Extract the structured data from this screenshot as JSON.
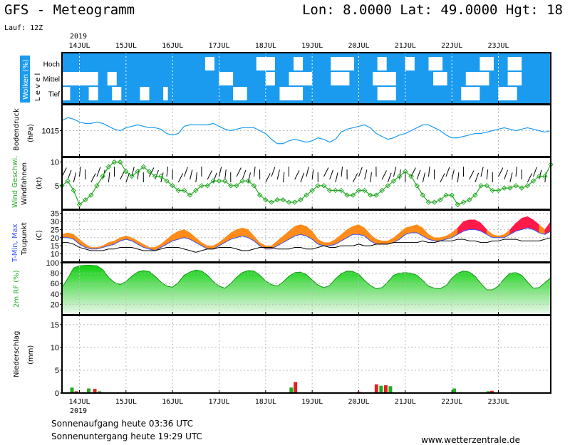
{
  "header": {
    "title": "GFS - Meteogramm",
    "coords": "Lon: 8.0000 Lat: 49.0000 Hgt: 18",
    "run": "Lauf: 12Z",
    "year": "2019"
  },
  "footer": {
    "sunrise": "Sonnenaufgang heute 03:36 UTC",
    "sunset": "Sonnenuntergang heute 19:29 UTC",
    "site": "www.wetterzentrale.de"
  },
  "colors": {
    "cloud_bg": "#1a9bf0",
    "pressure": "#1a9bf0",
    "wind_speed": "#22aa22",
    "humidity_top": "#10d010",
    "humidity_bottom": "#e9f6e9",
    "tmax_warm": "#ff8c1a",
    "tmax_hot": "#ff1a4a",
    "tmin": "#3050ff",
    "dewpoint": "#000000",
    "precip_green": "#22aa22",
    "precip_red": "#dd2222"
  },
  "chart_data": [
    {
      "type": "heatmap",
      "panel": "clouds",
      "ylabel": "Wolken (%)",
      "ylabel2": "L e v e l",
      "levels": [
        "Hoch",
        "Mittel",
        "Tief"
      ],
      "days": [
        "14JUL",
        "15JUL",
        "16JUL",
        "17JUL",
        "18JUL",
        "19JUL",
        "20JUL",
        "21JUL",
        "22JUL",
        "23JUL"
      ],
      "clear_spans": {
        "Hoch": [
          [
            16.7,
            16.9
          ],
          [
            17.8,
            18.2
          ],
          [
            18.6,
            18.8
          ],
          [
            19.4,
            19.9
          ],
          [
            20.4,
            20.6
          ],
          [
            21.0,
            21.2
          ],
          [
            21.5,
            21.8
          ],
          [
            22.6,
            22.9
          ],
          [
            23.2,
            23.5
          ]
        ],
        "Mittel": [
          [
            13.6,
            14.4
          ],
          [
            14.6,
            14.8
          ],
          [
            17.0,
            17.3
          ],
          [
            18.0,
            18.2
          ],
          [
            18.5,
            19.0
          ],
          [
            19.4,
            19.8
          ],
          [
            20.3,
            20.8
          ],
          [
            21.6,
            21.9
          ],
          [
            22.3,
            22.8
          ],
          [
            23.2,
            23.5
          ]
        ],
        "Tief": [
          [
            13.6,
            13.8
          ],
          [
            14.2,
            14.4
          ],
          [
            14.7,
            14.9
          ],
          [
            15.3,
            15.5
          ],
          [
            15.8,
            15.9
          ],
          [
            17.3,
            17.6
          ],
          [
            18.3,
            18.8
          ],
          [
            20.4,
            20.8
          ],
          [
            22.2,
            22.6
          ],
          [
            23.0,
            23.4
          ]
        ]
      }
    },
    {
      "type": "line",
      "panel": "pressure",
      "ylabel": "Bodendruck",
      "unit": "(hPa)",
      "yticks": [
        1015
      ],
      "ylim": [
        1006,
        1024
      ],
      "x_start_day": 13.625,
      "step_days": 0.125,
      "values": [
        1018.5,
        1019.5,
        1019,
        1018,
        1017.5,
        1017.5,
        1018,
        1017.5,
        1016.5,
        1015.5,
        1015,
        1016,
        1016.5,
        1017,
        1016.5,
        1016,
        1016,
        1015.5,
        1014,
        1013.5,
        1014,
        1016.5,
        1017,
        1017,
        1017,
        1017,
        1017.5,
        1016.5,
        1015.5,
        1015,
        1015.5,
        1016,
        1016,
        1016,
        1015,
        1014,
        1012,
        1010.5,
        1010.5,
        1011.5,
        1012,
        1011.5,
        1011,
        1011.5,
        1012.5,
        1012,
        1011,
        1012,
        1014.5,
        1015.5,
        1016,
        1016.5,
        1017,
        1016,
        1014,
        1013,
        1012,
        1012.5,
        1013.5,
        1014,
        1015,
        1016,
        1017,
        1017,
        1016,
        1015,
        1013.5,
        1012.5,
        1012.5,
        1013,
        1013.5,
        1014,
        1014,
        1014.5,
        1015,
        1015.5,
        1016,
        1015.5,
        1015,
        1015.5,
        1016,
        1015.5,
        1015,
        1014.5,
        1015
      ]
    },
    {
      "type": "line",
      "panel": "wind",
      "ylabel": "Wind Geschwi.",
      "ylabel2": "Windfahnen",
      "unit": "(kt)",
      "yticks": [
        5,
        10
      ],
      "ylim": [
        0,
        11
      ],
      "x_start_day": 13.625,
      "step_days": 0.125,
      "values": [
        5,
        6,
        4,
        1,
        2,
        3,
        5,
        7,
        9,
        10,
        10,
        8,
        7,
        8,
        9,
        8,
        7,
        7,
        6,
        5,
        4,
        4,
        3,
        4,
        5,
        5,
        6,
        6,
        6,
        5,
        5,
        6,
        6,
        5,
        3,
        2,
        1.5,
        2,
        2,
        1.5,
        1.5,
        2,
        3,
        4,
        5,
        5,
        4,
        4,
        4,
        3,
        3,
        4,
        4,
        3,
        3,
        4,
        5,
        6,
        7,
        8,
        7,
        5,
        3,
        1.5,
        1.5,
        2,
        3,
        3,
        1,
        1.5,
        2,
        3,
        5,
        5,
        4,
        4,
        4.5,
        4.5,
        5,
        4.5,
        5,
        6,
        7,
        7,
        9.5
      ]
    },
    {
      "type": "area",
      "panel": "temperature",
      "ylabel": "T-Min, Max",
      "ylabel2": "Taupunkt",
      "unit": "(C)",
      "yticks": [
        10,
        15,
        20,
        25,
        30,
        35
      ],
      "ylim": [
        5,
        37
      ],
      "x_start_day": 13.625,
      "step_days": 0.125,
      "tmax": [
        22,
        23,
        22,
        19,
        16,
        14,
        14,
        15,
        17,
        18,
        20,
        21,
        20,
        18,
        16,
        14,
        14,
        16,
        19,
        22,
        24,
        25,
        23,
        20,
        17,
        15,
        15,
        17,
        20,
        23,
        25,
        26,
        25,
        21,
        17,
        15,
        15,
        18,
        21,
        24,
        27,
        28,
        27,
        24,
        19,
        17,
        17,
        19,
        22,
        25,
        27,
        28,
        26,
        22,
        19,
        18,
        18,
        20,
        23,
        26,
        27,
        28,
        26,
        22,
        20,
        20,
        21,
        23,
        26,
        30,
        31,
        31,
        29,
        25,
        22,
        21,
        22,
        25,
        29,
        32,
        33,
        31,
        28,
        25,
        30
      ],
      "tmin": [
        20,
        20,
        19,
        16,
        14,
        13,
        13,
        14,
        15,
        16,
        18,
        19,
        18,
        16,
        14,
        13,
        12,
        14,
        16,
        18,
        19,
        20,
        19,
        17,
        15,
        13,
        13,
        15,
        17,
        19,
        20,
        21,
        20,
        18,
        15,
        13,
        13,
        15,
        17,
        19,
        21,
        22,
        21,
        19,
        16,
        15,
        15,
        16,
        18,
        20,
        22,
        22,
        21,
        18,
        16,
        16,
        16,
        17,
        19,
        22,
        23,
        23,
        21,
        19,
        18,
        18,
        19,
        20,
        22,
        24,
        25,
        25,
        24,
        22,
        20,
        20,
        20,
        22,
        24,
        25,
        26,
        25,
        23,
        22,
        24
      ],
      "dewpoint": [
        17,
        17,
        16,
        14,
        13,
        12,
        12,
        12,
        13,
        13,
        14,
        14,
        14,
        13,
        12,
        12,
        12,
        13,
        14,
        14,
        14,
        13,
        12,
        11,
        12,
        13,
        13,
        14,
        14,
        14,
        13,
        12,
        12,
        13,
        14,
        14,
        14,
        13,
        13,
        13,
        14,
        14,
        13,
        13,
        14,
        15,
        14,
        14,
        15,
        15,
        15,
        16,
        15,
        15,
        16,
        16,
        16,
        17,
        17,
        17,
        17,
        17,
        18,
        17,
        17,
        18,
        18,
        18,
        19,
        19,
        18,
        18,
        17,
        17,
        18,
        18,
        19,
        19,
        19,
        18,
        18,
        18,
        18,
        19,
        20
      ]
    },
    {
      "type": "area",
      "panel": "humidity",
      "ylabel": "2m RF (%)",
      "yticks": [
        20,
        40,
        60,
        80,
        100
      ],
      "ylim": [
        0,
        100
      ],
      "x_start_day": 13.625,
      "step_days": 0.125,
      "values": [
        52,
        70,
        90,
        94,
        95,
        95,
        94,
        87,
        72,
        62,
        58,
        64,
        74,
        82,
        85,
        83,
        74,
        63,
        55,
        53,
        62,
        76,
        82,
        86,
        84,
        76,
        64,
        55,
        51,
        60,
        72,
        81,
        85,
        84,
        76,
        65,
        58,
        55,
        63,
        74,
        81,
        82,
        77,
        67,
        57,
        52,
        56,
        69,
        79,
        84,
        83,
        78,
        66,
        56,
        50,
        52,
        63,
        76,
        80,
        81,
        80,
        76,
        66,
        55,
        51,
        50,
        56,
        70,
        80,
        84,
        82,
        74,
        60,
        48,
        48,
        55,
        69,
        80,
        81,
        76,
        63,
        51,
        52,
        62,
        71,
        85,
        82,
        70,
        55,
        48
      ]
    },
    {
      "type": "bar",
      "panel": "precipitation",
      "ylabel": "Niederschlag",
      "unit": "(mm)",
      "yticks": [
        0,
        5,
        10,
        15
      ],
      "ylim": [
        0,
        17
      ],
      "x": [
        13.84,
        13.93,
        14.2,
        14.33,
        14.43,
        18.55,
        18.64,
        20.0,
        20.38,
        20.48,
        20.58,
        20.68,
        22.05,
        22.78,
        22.86
      ],
      "values": [
        1.2,
        0.4,
        1.0,
        0.9,
        0.4,
        1.2,
        2.4,
        0.3,
        1.9,
        1.6,
        1.7,
        1.5,
        1.0,
        0.4,
        0.5
      ],
      "colors": [
        "green",
        "red",
        "green",
        "red",
        "green",
        "green",
        "red",
        "red",
        "red",
        "green",
        "red",
        "green",
        "green",
        "green",
        "red"
      ],
      "xlabels": [
        "14JUL",
        "15JUL",
        "16JUL",
        "17JUL",
        "18JUL",
        "19JUL",
        "20JUL",
        "21JUL",
        "22JUL",
        "23JUL"
      ],
      "year_label": "2019"
    }
  ]
}
